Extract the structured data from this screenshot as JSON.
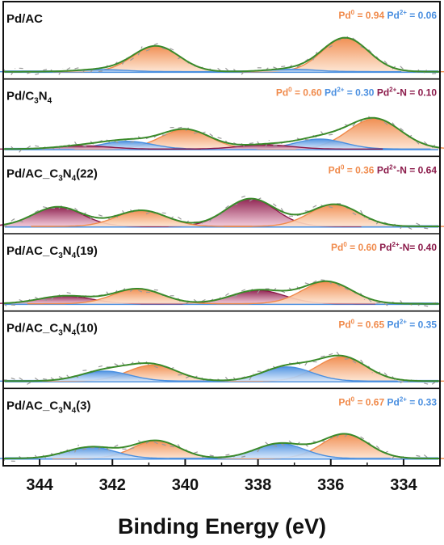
{
  "chart_data": {
    "type": "area",
    "xlabel": "Binding Energy (eV)",
    "xlim": [
      345,
      333
    ],
    "x_ticks": [
      344,
      342,
      340,
      338,
      336,
      334
    ],
    "x_tick_labels": [
      "344",
      "342",
      "340",
      "338",
      "336",
      "334"
    ],
    "colors": {
      "pd0": "#f08a4b",
      "pd2": "#4a8fe0",
      "pd2n": "#8b1a4a",
      "envelope": "#3a8a2a",
      "raw": "#9a9a9a",
      "frame": "#111111"
    },
    "panels": [
      {
        "label_main": "Pd/AC",
        "legend": [
          {
            "species": "pd0",
            "name": "Pd",
            "sup": "0",
            "eq": " = 0.94 "
          },
          {
            "species": "pd2",
            "name": "Pd",
            "sup": "2+",
            "eq": " = 0.06"
          }
        ],
        "peaks": [
          {
            "species": "pd0",
            "center": 340.8,
            "fwhm": 1.5,
            "height": 0.72
          },
          {
            "species": "pd0",
            "center": 335.6,
            "fwhm": 1.5,
            "height": 0.95
          },
          {
            "species": "pd2",
            "center": 342.3,
            "fwhm": 1.6,
            "height": 0.06
          },
          {
            "species": "pd2",
            "center": 337.1,
            "fwhm": 1.6,
            "height": 0.07
          }
        ]
      },
      {
        "label_main": "Pd/C",
        "label_parts": [
          {
            "t": "Pd/C"
          },
          {
            "t": "3",
            "sub": true
          },
          {
            "t": "N"
          },
          {
            "t": "4",
            "sub": true
          }
        ],
        "legend": [
          {
            "species": "pd0",
            "name": "Pd",
            "sup": "0",
            "eq": " = 0.60 "
          },
          {
            "species": "pd2",
            "name": "Pd",
            "sup": "2+",
            "eq": " = 0.30 "
          },
          {
            "species": "pd2n",
            "name": "Pd",
            "sup": "2+",
            "eq": "-N = 0.10"
          }
        ],
        "peaks": [
          {
            "species": "pd0",
            "center": 340.0,
            "fwhm": 1.6,
            "height": 0.55
          },
          {
            "species": "pd0",
            "center": 334.8,
            "fwhm": 1.7,
            "height": 0.85
          },
          {
            "species": "pd2",
            "center": 341.6,
            "fwhm": 1.6,
            "height": 0.22
          },
          {
            "species": "pd2",
            "center": 336.3,
            "fwhm": 1.6,
            "height": 0.28
          },
          {
            "species": "pd2n",
            "center": 342.8,
            "fwhm": 1.7,
            "height": 0.09
          },
          {
            "species": "pd2n",
            "center": 337.8,
            "fwhm": 1.7,
            "height": 0.12
          }
        ]
      },
      {
        "label_main": "Pd/AC_C",
        "label_parts": [
          {
            "t": "Pd/AC_C"
          },
          {
            "t": "3",
            "sub": true
          },
          {
            "t": "N"
          },
          {
            "t": "4",
            "sub": true
          },
          {
            "t": "(22)"
          }
        ],
        "legend": [
          {
            "species": "pd0",
            "name": "Pd",
            "sup": "0",
            "eq": " = 0.36 "
          },
          {
            "species": "pd2n",
            "name": "Pd",
            "sup": "2+",
            "eq": "-N = 0.64"
          }
        ],
        "peaks": [
          {
            "species": "pd2n",
            "center": 343.5,
            "fwhm": 1.6,
            "height": 0.55
          },
          {
            "species": "pd2n",
            "center": 338.2,
            "fwhm": 1.6,
            "height": 0.78
          },
          {
            "species": "pd0",
            "center": 341.2,
            "fwhm": 1.6,
            "height": 0.45
          },
          {
            "species": "pd0",
            "center": 335.9,
            "fwhm": 1.6,
            "height": 0.62
          }
        ]
      },
      {
        "label_main": "Pd/AC_C",
        "label_parts": [
          {
            "t": "Pd/AC_C"
          },
          {
            "t": "3",
            "sub": true
          },
          {
            "t": "N"
          },
          {
            "t": "4",
            "sub": true
          },
          {
            "t": "(19)"
          }
        ],
        "legend": [
          {
            "species": "pd0",
            "name": "Pd",
            "sup": "0",
            "eq": " = 0.60 "
          },
          {
            "species": "pd2n",
            "name": "Pd",
            "sup": "2+",
            "eq": "-N= 0.40"
          }
        ],
        "peaks": [
          {
            "species": "pd2n",
            "center": 343.3,
            "fwhm": 1.7,
            "height": 0.22
          },
          {
            "species": "pd2n",
            "center": 338.0,
            "fwhm": 1.7,
            "height": 0.38
          },
          {
            "species": "pd0",
            "center": 341.3,
            "fwhm": 1.6,
            "height": 0.42
          },
          {
            "species": "pd0",
            "center": 336.1,
            "fwhm": 1.6,
            "height": 0.62
          }
        ]
      },
      {
        "label_main": "Pd/AC_C",
        "label_parts": [
          {
            "t": "Pd/AC_C"
          },
          {
            "t": "3",
            "sub": true
          },
          {
            "t": "N"
          },
          {
            "t": "4",
            "sub": true
          },
          {
            "t": "(10)"
          }
        ],
        "legend": [
          {
            "species": "pd0",
            "name": "Pd",
            "sup": "0",
            "eq": " = 0.65 "
          },
          {
            "species": "pd2",
            "name": "Pd",
            "sup": "2+",
            "eq": " = 0.35"
          }
        ],
        "peaks": [
          {
            "species": "pd0",
            "center": 340.9,
            "fwhm": 1.6,
            "height": 0.45
          },
          {
            "species": "pd0",
            "center": 335.7,
            "fwhm": 1.6,
            "height": 0.68
          },
          {
            "species": "pd2",
            "center": 342.2,
            "fwhm": 1.6,
            "height": 0.28
          },
          {
            "species": "pd2",
            "center": 337.2,
            "fwhm": 1.6,
            "height": 0.4
          }
        ]
      },
      {
        "label_main": "Pd/AC_C",
        "label_parts": [
          {
            "t": "Pd/AC_C"
          },
          {
            "t": "3",
            "sub": true
          },
          {
            "t": "N"
          },
          {
            "t": "4",
            "sub": true
          },
          {
            "t": "(3)"
          }
        ],
        "legend": [
          {
            "species": "pd0",
            "name": "Pd",
            "sup": "0",
            "eq": " = 0.67 "
          },
          {
            "species": "pd2",
            "name": "Pd",
            "sup": "2+",
            "eq": " = 0.33"
          }
        ],
        "peaks": [
          {
            "species": "pd0",
            "center": 340.8,
            "fwhm": 1.5,
            "height": 0.5
          },
          {
            "species": "pd0",
            "center": 335.6,
            "fwhm": 1.5,
            "height": 0.68
          },
          {
            "species": "pd2",
            "center": 342.6,
            "fwhm": 1.6,
            "height": 0.32
          },
          {
            "species": "pd2",
            "center": 337.4,
            "fwhm": 1.6,
            "height": 0.42
          }
        ]
      }
    ]
  }
}
